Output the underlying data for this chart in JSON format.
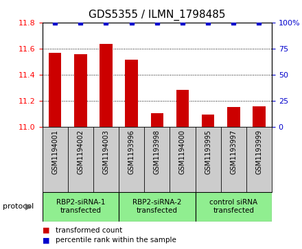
{
  "title": "GDS5355 / ILMN_1798485",
  "samples": [
    "GSM1194001",
    "GSM1194002",
    "GSM1194003",
    "GSM1193996",
    "GSM1193998",
    "GSM1194000",
    "GSM1193995",
    "GSM1193997",
    "GSM1193999"
  ],
  "bar_values": [
    11.565,
    11.555,
    11.635,
    11.515,
    11.105,
    11.285,
    11.095,
    11.155,
    11.16
  ],
  "percentile_values": [
    100,
    100,
    100,
    100,
    100,
    100,
    100,
    100,
    100
  ],
  "bar_color": "#cc0000",
  "dot_color": "#0000cc",
  "ylim_left": [
    11.0,
    11.8
  ],
  "ylim_right": [
    0,
    100
  ],
  "yticks_left": [
    11.0,
    11.2,
    11.4,
    11.6,
    11.8
  ],
  "yticks_right": [
    0,
    25,
    50,
    75,
    100
  ],
  "group_boundaries": [
    [
      0,
      2,
      "RBP2-siRNA-1\ntransfected"
    ],
    [
      3,
      5,
      "RBP2-siRNA-2\ntransfected"
    ],
    [
      6,
      8,
      "control siRNA\ntransfected"
    ]
  ],
  "group_color": "#90ee90",
  "tick_area_color": "#cccccc",
  "protocol_label": "protocol",
  "legend_items": [
    {
      "color": "#cc0000",
      "label": "transformed count"
    },
    {
      "color": "#0000cc",
      "label": "percentile rank within the sample"
    }
  ],
  "bar_width": 0.5,
  "title_fontsize": 11
}
